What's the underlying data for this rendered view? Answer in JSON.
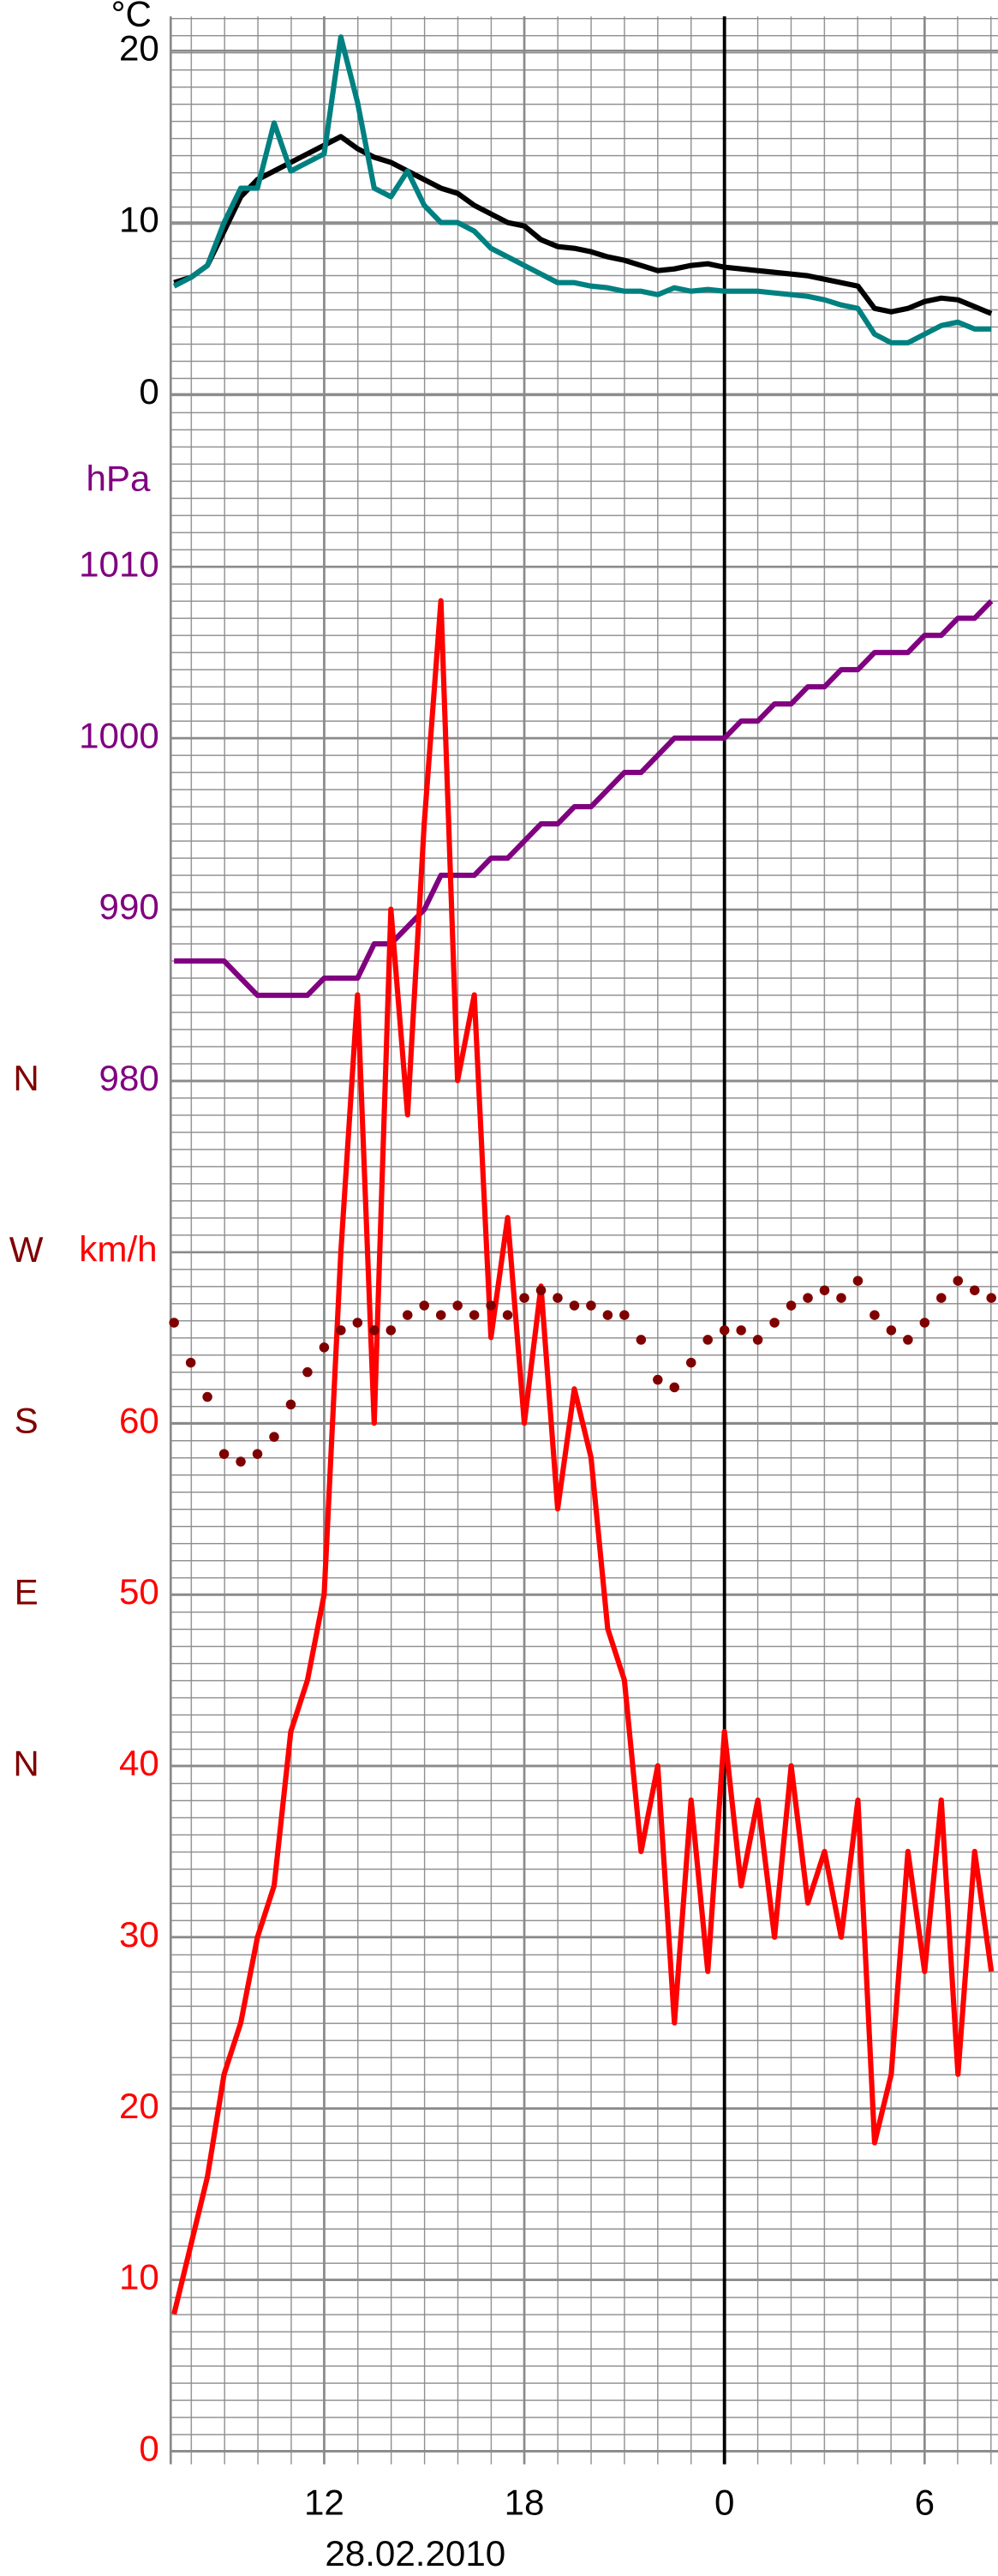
{
  "chart_data": {
    "type": "line",
    "xlabel": "28.02.2010",
    "xlim": [
      7.4,
      32.2
    ],
    "xticks": [
      12,
      18,
      {
        "value": 24,
        "label": "0"
      },
      {
        "value": 30,
        "label": "6"
      }
    ],
    "vline": 24,
    "grid": true,
    "axes": [
      {
        "label": "°C",
        "color": "#000000",
        "ylim": [
          0,
          22
        ],
        "yticks": [
          0,
          10,
          20
        ]
      },
      {
        "label": "hPa",
        "color": "#800080",
        "ylim": [
          980,
          1010
        ],
        "yticks": [
          980,
          990,
          1000,
          1010
        ]
      },
      {
        "label": "km/h",
        "color": "#ff0000",
        "ylim": [
          0,
          70
        ],
        "yticks": [
          0,
          10,
          20,
          30,
          40,
          50,
          60
        ]
      },
      {
        "color": "#800000",
        "ylim": [
          0,
          360
        ],
        "yticks": [
          {
            "value": 0,
            "label": "N"
          },
          {
            "value": 90,
            "label": "E"
          },
          {
            "value": 180,
            "label": "S"
          },
          {
            "value": 270,
            "label": "W"
          },
          {
            "value": 360,
            "label": "N"
          }
        ]
      }
    ],
    "x": [
      7.5,
      8,
      8.5,
      9,
      9.5,
      10,
      10.5,
      11,
      11.5,
      12,
      12.5,
      13,
      13.5,
      14,
      14.5,
      15,
      15.5,
      16,
      16.5,
      17,
      17.5,
      18,
      18.5,
      19,
      19.5,
      20,
      20.5,
      21,
      21.5,
      22,
      22.5,
      23,
      23.5,
      24,
      24.5,
      25,
      25.5,
      26,
      26.5,
      27,
      27.5,
      28,
      28.5,
      29,
      29.5,
      30,
      30.5,
      31,
      31.5,
      32
    ],
    "series": [
      {
        "axis": 0,
        "style": "line",
        "color": "#000000",
        "values": [
          6.5,
          6.8,
          7.5,
          9.5,
          11.5,
          12.5,
          13,
          13.5,
          14,
          14.5,
          15,
          14.3,
          13.8,
          13.5,
          13,
          12.5,
          12,
          11.7,
          11,
          10.5,
          10,
          9.8,
          9,
          8.6,
          8.5,
          8.3,
          8,
          7.8,
          7.5,
          7.2,
          7.3,
          7.5,
          7.6,
          7.4,
          7.3,
          7.2,
          7.1,
          7,
          6.9,
          6.7,
          6.5,
          6.3,
          5,
          4.8,
          5,
          5.4,
          5.6,
          5.5,
          5.1,
          4.7
        ]
      },
      {
        "axis": 0,
        "style": "line",
        "color": "#008080",
        "values": [
          6.3,
          6.8,
          7.5,
          10,
          12,
          12,
          15.8,
          13,
          13.5,
          14,
          20.8,
          17,
          12,
          11.5,
          13,
          11,
          10,
          10,
          9.5,
          8.5,
          8,
          7.5,
          7,
          6.5,
          6.5,
          6.3,
          6.2,
          6,
          6,
          5.8,
          6.2,
          6,
          6.1,
          6,
          6,
          6,
          5.9,
          5.8,
          5.7,
          5.5,
          5.2,
          5,
          3.5,
          3,
          3,
          3.5,
          4,
          4.2,
          3.8,
          3.8
        ]
      },
      {
        "axis": 1,
        "style": "line",
        "color": "#800080",
        "values": [
          987,
          987,
          987,
          987,
          986,
          985,
          985,
          985,
          985,
          986,
          986,
          986,
          988,
          988,
          989,
          990,
          992,
          992,
          992,
          993,
          993,
          994,
          995,
          995,
          996,
          996,
          997,
          998,
          998,
          999,
          1000,
          1000,
          1000,
          1000,
          1001,
          1001,
          1002,
          1002,
          1003,
          1003,
          1004,
          1004,
          1005,
          1005,
          1005,
          1006,
          1006,
          1007,
          1007,
          1008
        ]
      },
      {
        "axis": 2,
        "style": "line",
        "color": "#ff0000",
        "values": [
          8,
          12,
          16,
          22,
          25,
          30,
          33,
          42,
          45,
          50,
          70,
          85,
          60,
          90,
          78,
          95,
          108,
          80,
          85,
          65,
          72,
          60,
          68,
          55,
          62,
          58,
          48,
          45,
          35,
          40,
          25,
          38,
          28,
          42,
          33,
          38,
          30,
          40,
          32,
          35,
          30,
          38,
          18,
          22,
          35,
          28,
          38,
          22,
          35,
          28
        ]
      },
      {
        "axis": 3,
        "style": "points",
        "color": "#800000",
        "values": [
          233,
          212,
          194,
          164,
          160,
          164,
          173,
          190,
          207,
          220,
          229,
          233,
          229,
          229,
          237,
          242,
          237,
          242,
          237,
          242,
          237,
          246,
          250,
          246,
          242,
          242,
          237,
          237,
          224,
          203,
          199,
          212,
          224,
          229,
          229,
          224,
          233,
          242,
          246,
          250,
          246,
          255,
          237,
          229,
          224,
          233,
          246,
          255,
          250,
          246
        ]
      }
    ]
  }
}
